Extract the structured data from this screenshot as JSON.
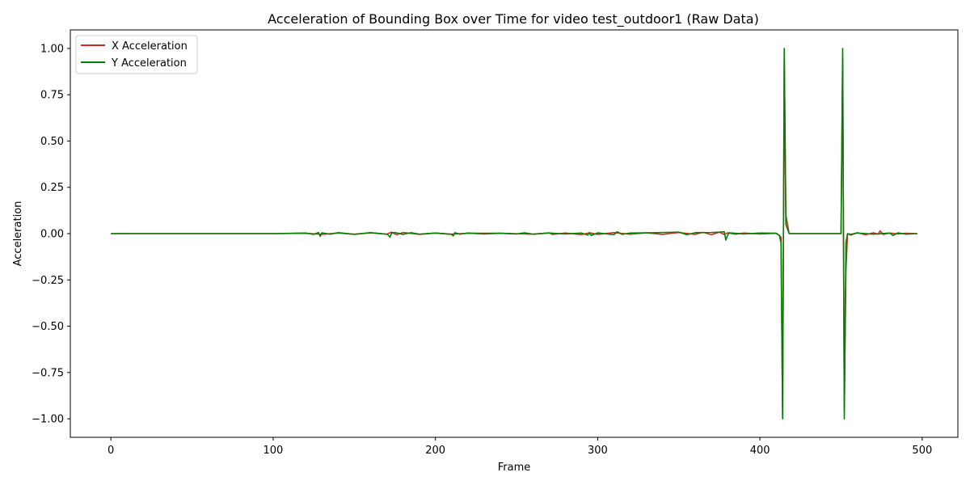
{
  "chart_data": {
    "type": "line",
    "title": "Acceleration of Bounding Box over Time for video test_outdoor1 (Raw Data)",
    "xlabel": "Frame",
    "ylabel": "Acceleration",
    "xlim": [
      -25,
      522
    ],
    "ylim": [
      -1.1,
      1.1
    ],
    "xticks": [
      0,
      100,
      200,
      300,
      400,
      500
    ],
    "xtick_labels": [
      "0",
      "100",
      "200",
      "300",
      "400",
      "500"
    ],
    "yticks": [
      1.0,
      0.75,
      0.5,
      0.25,
      0.0,
      -0.25,
      -0.5,
      -0.75,
      -1.0
    ],
    "ytick_labels": [
      "1.00",
      "0.75",
      "0.50",
      "0.25",
      "0.00",
      "−0.25",
      "−0.50",
      "−0.75",
      "−1.00"
    ],
    "grid": false,
    "legend_position": "top-left",
    "series": [
      {
        "name": "X Acceleration",
        "color": "#d62728",
        "x": [
          0,
          100,
          120,
          130,
          140,
          150,
          160,
          170,
          173,
          176,
          180,
          190,
          200,
          210,
          220,
          240,
          260,
          270,
          272,
          280,
          290,
          295,
          300,
          310,
          320,
          330,
          340,
          350,
          360,
          365,
          370,
          375,
          378,
          380,
          385,
          390,
          400,
          410,
          412,
          413,
          414,
          415,
          416,
          418,
          450,
          451,
          452,
          453,
          454,
          456,
          460,
          465,
          470,
          473,
          474,
          476,
          480,
          485,
          490,
          497
        ],
        "y": [
          0,
          0,
          0.002,
          -0.004,
          0.003,
          -0.003,
          0.004,
          -0.003,
          0.008,
          -0.006,
          0.006,
          -0.004,
          0.003,
          -0.003,
          0.002,
          0.002,
          -0.003,
          0.004,
          -0.004,
          0.003,
          -0.005,
          0.004,
          -0.004,
          0.005,
          -0.003,
          0.004,
          -0.004,
          0.006,
          -0.004,
          0.007,
          -0.006,
          0.008,
          -0.005,
          0.004,
          -0.003,
          0.003,
          -0.002,
          0.002,
          -0.01,
          -0.02,
          -0.99,
          0.95,
          0.1,
          0,
          0,
          0.95,
          -0.95,
          -0.2,
          0,
          -0.008,
          0.005,
          -0.006,
          0.004,
          -0.003,
          0.015,
          -0.004,
          0.003,
          -0.002,
          0.002,
          0
        ]
      },
      {
        "name": "Y Acceleration",
        "color": "#008000",
        "x": [
          0,
          100,
          120,
          125,
          128,
          129,
          130,
          135,
          140,
          150,
          160,
          170,
          171,
          172,
          173,
          175,
          180,
          185,
          190,
          200,
          210,
          211,
          212,
          215,
          220,
          230,
          240,
          250,
          255,
          260,
          270,
          280,
          290,
          294,
          295,
          296,
          300,
          310,
          312,
          315,
          320,
          330,
          340,
          350,
          355,
          360,
          370,
          375,
          378,
          379,
          380,
          381,
          383,
          390,
          400,
          410,
          412,
          413,
          414,
          415,
          416,
          418,
          450,
          451,
          452,
          453,
          454,
          456,
          460,
          470,
          480,
          482,
          485,
          490,
          497
        ],
        "y": [
          0,
          0,
          0.003,
          -0.004,
          0.006,
          -0.015,
          0.004,
          -0.003,
          0.005,
          -0.004,
          0.005,
          -0.003,
          -0.008,
          -0.02,
          0.003,
          0.006,
          -0.004,
          0.005,
          -0.003,
          0.003,
          -0.004,
          -0.012,
          0.005,
          -0.003,
          0.003,
          -0.002,
          0.002,
          -0.002,
          0.004,
          -0.003,
          0.003,
          -0.002,
          0.003,
          -0.008,
          0.005,
          -0.01,
          0.004,
          -0.006,
          0.01,
          -0.004,
          0.003,
          0.004,
          0.006,
          0.008,
          -0.006,
          0.005,
          0.006,
          0.008,
          0.01,
          -0.035,
          -0.01,
          0.004,
          0.003,
          -0.002,
          0.003,
          0.002,
          -0.01,
          -0.05,
          -1.0,
          1.0,
          0.05,
          0,
          0,
          1.0,
          -1.0,
          -0.05,
          0,
          -0.004,
          0.003,
          -0.003,
          0.003,
          -0.01,
          0.004,
          -0.003,
          0
        ]
      }
    ]
  }
}
